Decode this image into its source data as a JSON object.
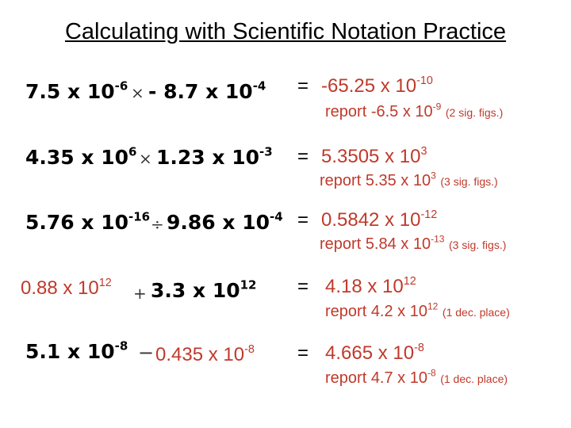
{
  "title": "Calculating with Scientific Notation Practice",
  "rows": [
    {
      "a": {
        "mant": "7.5 x 10",
        "exp": "-6"
      },
      "op": "×",
      "b": {
        "mant": "- 8.7 x 10",
        "exp": "-4"
      },
      "eq": "=",
      "result": {
        "mant": "-65.25 x 10",
        "exp": "-10"
      },
      "report": {
        "label": "report",
        "mant": "-6.5 x 10",
        "exp": "-9",
        "note": "(2 sig. figs.)"
      }
    },
    {
      "a": {
        "mant": "4.35 x 10",
        "exp": "6"
      },
      "op": "×",
      "b": {
        "mant": "1.23 x 10",
        "exp": "-3"
      },
      "eq": "=",
      "result": {
        "mant": "5.3505 x 10",
        "exp": "3"
      },
      "report": {
        "label": "report",
        "mant": "5.35 x 10",
        "exp": "3",
        "note": "(3 sig. figs.)"
      }
    },
    {
      "a": {
        "mant": "5.76 x 10",
        "exp": "-16"
      },
      "op": "÷",
      "b": {
        "mant": "9.86 x 10",
        "exp": "-4"
      },
      "eq": "=",
      "result": {
        "mant": "0.5842 x 10",
        "exp": "-12"
      },
      "report": {
        "label": "report",
        "mant": "5.84 x 10",
        "exp": "-13",
        "note": "(3 sig. figs.)"
      }
    },
    {
      "a": {
        "mant": "0.88 x 10",
        "exp": "12"
      },
      "op": "+",
      "b": {
        "mant": "3.3 x 10",
        "exp": "12"
      },
      "eq": "=",
      "result": {
        "mant": "4.18 x 10",
        "exp": "12"
      },
      "report": {
        "label": "report",
        "mant": "4.2 x 10",
        "exp": "12",
        "note": "(1 dec. place)"
      }
    },
    {
      "a": {
        "mant": "5.1 x 10",
        "exp": "-8"
      },
      "op": "−",
      "b": {
        "mant": "0.435 x 10",
        "exp": "-8"
      },
      "eq": "=",
      "result": {
        "mant": "4.665 x 10",
        "exp": "-8"
      },
      "report": {
        "label": "report",
        "mant": "4.7 x 10",
        "exp": "-8",
        "note": "(1 dec. place)"
      }
    }
  ],
  "colors": {
    "result": "#c0392b",
    "text": "#000000"
  }
}
